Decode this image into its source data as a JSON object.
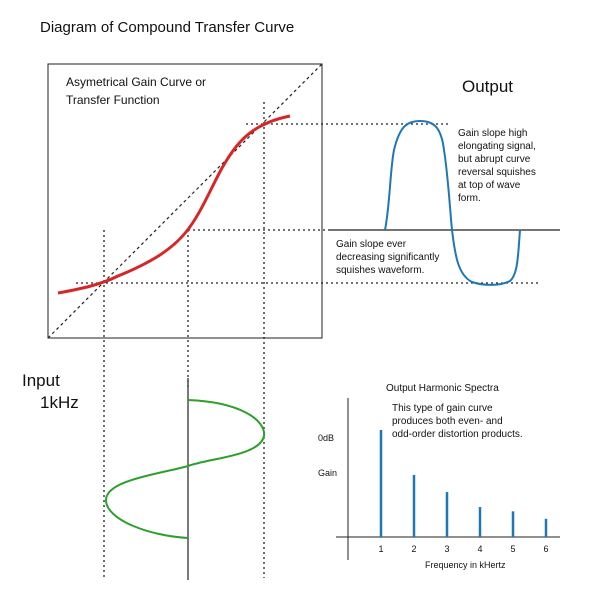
{
  "title": "Diagram of Compound Transfer Curve",
  "gain_curve_label": [
    "Asymetrical Gain Curve or",
    "Transfer Function"
  ],
  "output_label": "Output",
  "output_note_top": [
    "Gain slope high",
    "elongating signal,",
    "but abrupt  curve",
    "reversal squishes",
    "at top of wave",
    "form."
  ],
  "output_note_mid": [
    "Gain slope ever",
    "decreasing significantly",
    "squishes waveform."
  ],
  "input_label": [
    "Input",
    "1kHz"
  ],
  "spectra": {
    "title": "Output Harmonic Spectra",
    "note": [
      "This type of gain curve",
      "produces both even- and",
      "odd-order distortion products."
    ],
    "y_labels": [
      "0dB",
      "Gain"
    ],
    "xlabel": "Frequency in kHertz"
  },
  "colors": {
    "transfer_curve": "#d62728",
    "output_wave": "#1f77b4",
    "input_wave": "#2ca02c",
    "spectrum_bar": "#1f77b4",
    "frame": "#222222"
  },
  "chart_data": {
    "type": "bar",
    "title": "Output Harmonic Spectra",
    "xlabel": "Frequency in kHertz",
    "categories": [
      "1",
      "2",
      "3",
      "4",
      "5",
      "6"
    ],
    "values": [
      1.0,
      0.58,
      0.42,
      0.28,
      0.24,
      0.17
    ],
    "ylim": [
      0,
      1.1
    ]
  }
}
